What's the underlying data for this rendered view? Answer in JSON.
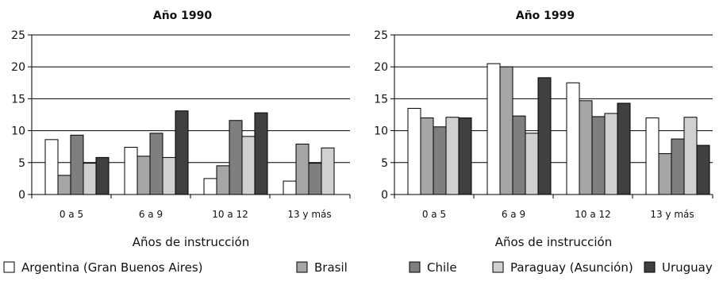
{
  "colors": {
    "Argentina": "#ffffff",
    "Brasil": "#a6a6a6",
    "Chile": "#7f7f7f",
    "Paraguay": "#d0d0d0",
    "Uruguay": "#404040"
  },
  "legend": [
    {
      "name": "Argentina (Gran Buenos Aires)",
      "color_key": "Argentina"
    },
    {
      "name": "Brasil",
      "color_key": "Brasil"
    },
    {
      "name": "Chile",
      "color_key": "Chile"
    },
    {
      "name": "Paraguay (Asunción)",
      "color_key": "Paraguay"
    },
    {
      "name": "Uruguay",
      "color_key": "Uruguay"
    }
  ],
  "chart_data": [
    {
      "type": "bar",
      "title": "Año  1990",
      "xlabel": "Años de instrucción",
      "ylabel": "",
      "ylim": [
        0,
        25
      ],
      "yticks": [
        0,
        5,
        10,
        15,
        20,
        25
      ],
      "grid": true,
      "categories": [
        "0 a 5",
        "6 a 9",
        "10 a 12",
        "13 y más"
      ],
      "series": [
        {
          "name": "Argentina (Gran Buenos Aires)",
          "color_key": "Argentina",
          "values": [
            8.6,
            7.4,
            2.5,
            2.1
          ]
        },
        {
          "name": "Brasil",
          "color_key": "Brasil",
          "values": [
            3.0,
            6.0,
            4.5,
            7.9
          ]
        },
        {
          "name": "Chile",
          "color_key": "Chile",
          "values": [
            9.3,
            9.6,
            11.6,
            4.9
          ]
        },
        {
          "name": "Paraguay (Asunción)",
          "color_key": "Paraguay",
          "values": [
            4.9,
            5.8,
            9.1,
            7.3
          ]
        },
        {
          "name": "Uruguay",
          "color_key": "Uruguay",
          "values": [
            5.8,
            13.1,
            12.8,
            null
          ]
        }
      ]
    },
    {
      "type": "bar",
      "title": "Año  1999",
      "xlabel": "Años de instrucción",
      "ylabel": "",
      "ylim": [
        0,
        25
      ],
      "yticks": [
        0,
        5,
        10,
        15,
        20,
        25
      ],
      "grid": true,
      "categories": [
        "0 a 5",
        "6 a 9",
        "10 a 12",
        "13 y más"
      ],
      "series": [
        {
          "name": "Argentina (Gran Buenos Aires)",
          "color_key": "Argentina",
          "values": [
            13.5,
            20.5,
            17.5,
            12.0
          ]
        },
        {
          "name": "Brasil",
          "color_key": "Brasil",
          "values": [
            12.0,
            20.0,
            14.7,
            6.4
          ]
        },
        {
          "name": "Chile",
          "color_key": "Chile",
          "values": [
            10.6,
            12.3,
            12.2,
            8.7
          ]
        },
        {
          "name": "Paraguay (Asunción)",
          "color_key": "Paraguay",
          "values": [
            12.1,
            9.6,
            12.7,
            12.1
          ]
        },
        {
          "name": "Uruguay",
          "color_key": "Uruguay",
          "values": [
            12.0,
            18.3,
            14.3,
            7.7
          ]
        }
      ]
    }
  ]
}
